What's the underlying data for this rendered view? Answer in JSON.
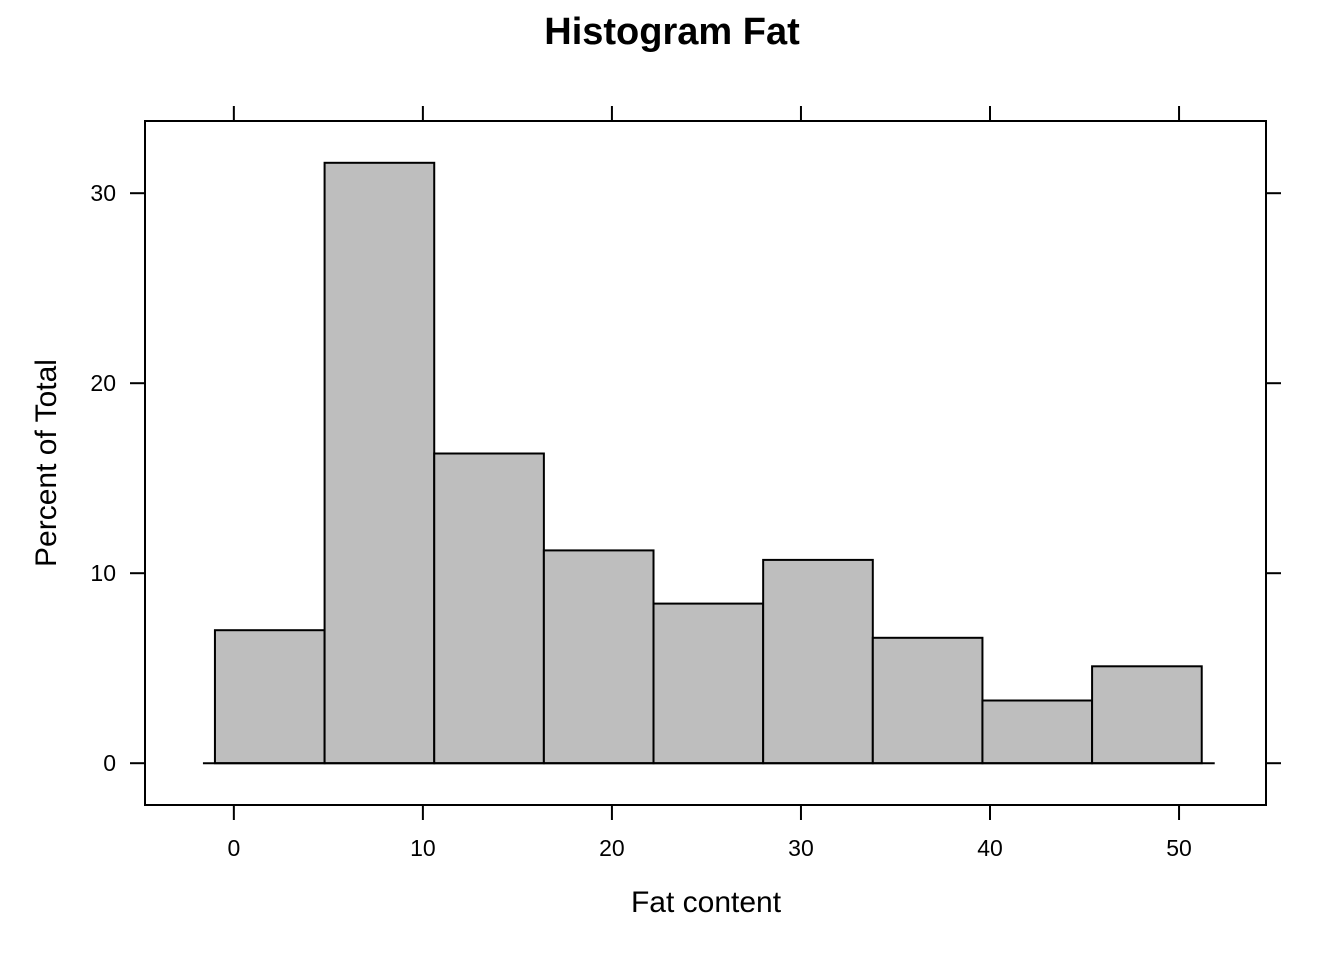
{
  "chart_data": {
    "type": "bar",
    "title": "Histogram Fat",
    "xlabel": "Fat content",
    "ylabel": "Percent of Total",
    "bin_edges": [
      -1.0,
      4.8,
      10.6,
      16.4,
      22.2,
      28.0,
      33.8,
      39.6,
      45.4,
      51.2
    ],
    "values": [
      7.0,
      31.6,
      16.3,
      11.2,
      8.4,
      10.7,
      6.6,
      3.3,
      5.1
    ],
    "xlim": [
      -4.7,
      54.6
    ],
    "ylim": [
      -2.2,
      33.8
    ],
    "xticks": [
      0,
      10,
      20,
      30,
      40,
      50
    ],
    "yticks": [
      0,
      10,
      20,
      30
    ],
    "bar_fill": "#bebebe",
    "bar_stroke": "#000000",
    "grid": false,
    "legend": "none"
  }
}
